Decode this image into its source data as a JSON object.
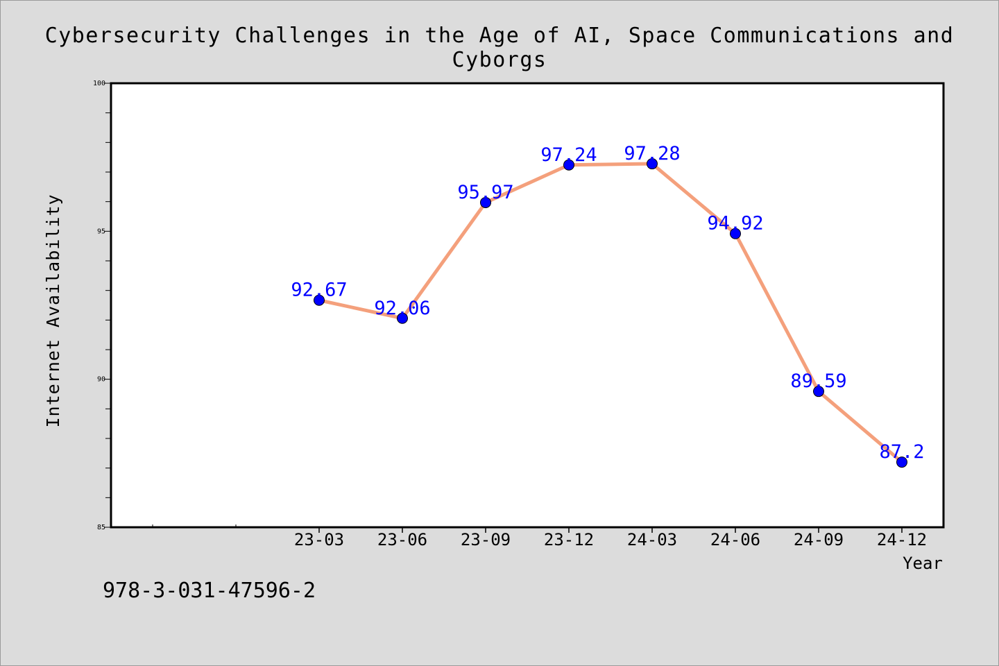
{
  "chart_data": {
    "type": "line",
    "title": "Cybersecurity Challenges in the Age of AI, Space Communications and Cyborgs",
    "xlabel": "Year",
    "ylabel": "Internet Availability",
    "categories": [
      "23-03",
      "23-06",
      "23-09",
      "23-12",
      "24-03",
      "24-06",
      "24-09",
      "24-12"
    ],
    "series": [
      {
        "values": [
          92.67,
          92.06,
          95.97,
          97.24,
          97.28,
          94.92,
          89.59,
          87.2
        ]
      }
    ],
    "data_labels": [
      "92.67",
      "92.06",
      "95.97",
      "97.24",
      "97.28",
      "94.92",
      "89.59",
      "87.2"
    ],
    "ylim": [
      85,
      100
    ],
    "yticks": [
      "85",
      "90",
      "95",
      "100"
    ],
    "grid": false,
    "legend": "none",
    "colors": {
      "line": "#f4a07c",
      "marker": "#0000ff",
      "label": "#0000ff",
      "background": "#dcdcdc",
      "plot_bg": "#ffffff"
    }
  },
  "footer": {
    "caption": "978-3-031-47596-2"
  }
}
